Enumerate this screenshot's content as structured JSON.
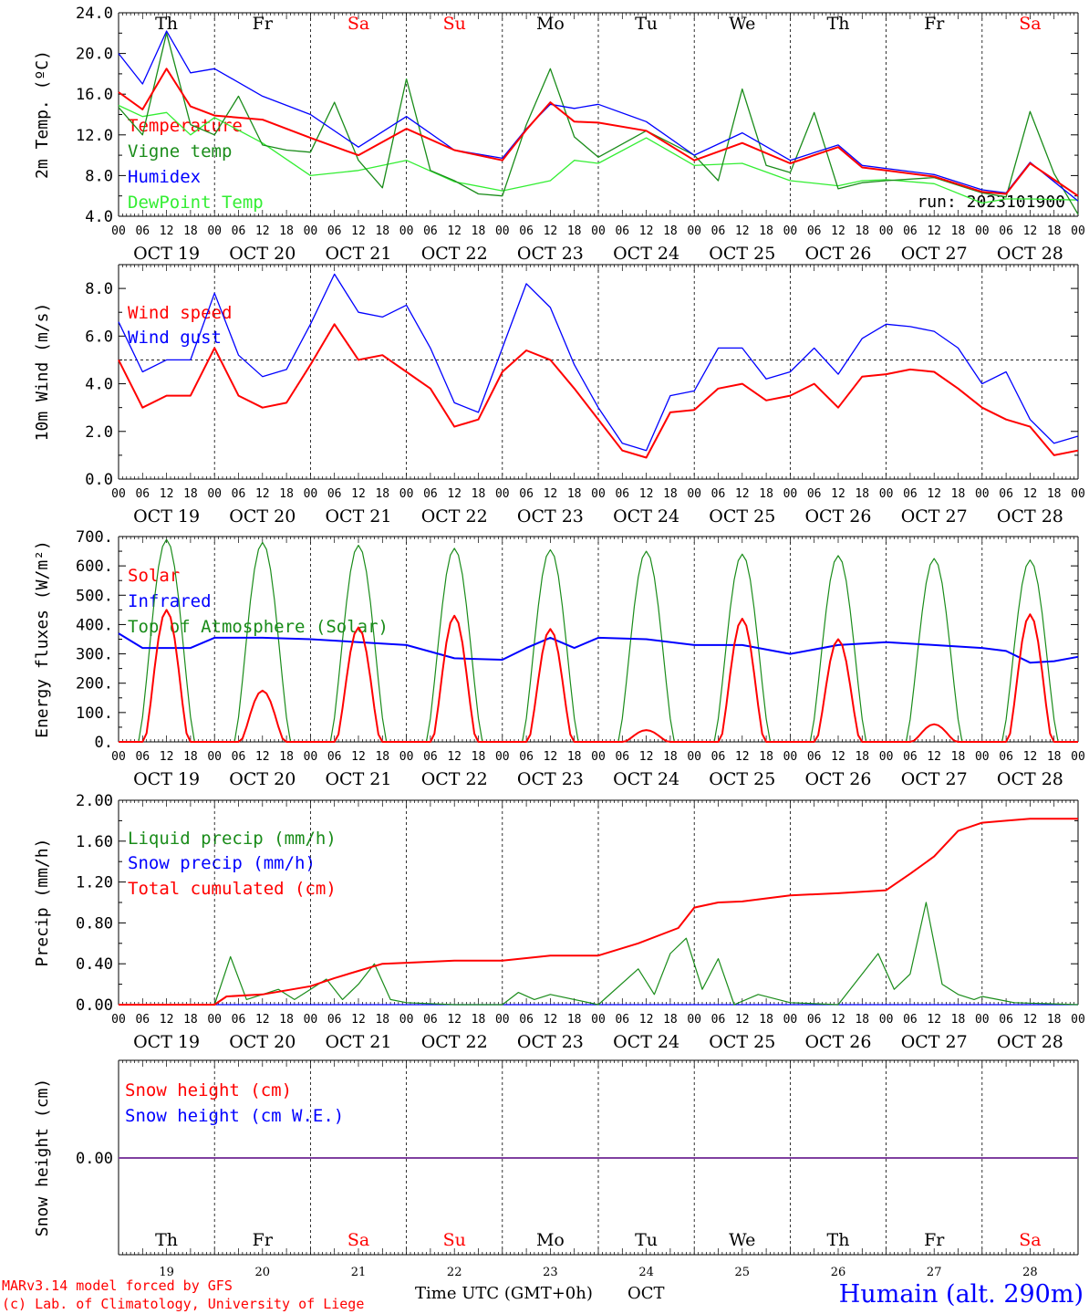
{
  "colors": {
    "red": "#ff0000",
    "green": "#1a8c1a",
    "lightgreen": "#33ee33",
    "blue": "#0000ff",
    "purple": "#8040a0",
    "black": "#000000"
  },
  "days": {
    "weekday": [
      "Th",
      "Fr",
      "Sa",
      "Su",
      "Mo",
      "Tu",
      "We",
      "Th",
      "Fr",
      "Sa"
    ],
    "weekend": [
      false,
      false,
      true,
      true,
      false,
      false,
      false,
      false,
      false,
      true
    ],
    "date": [
      "OCT 19",
      "OCT 20",
      "OCT 21",
      "OCT 22",
      "OCT 23",
      "OCT 24",
      "OCT 25",
      "OCT 26",
      "OCT 27",
      "OCT 28"
    ],
    "daynum": [
      "19",
      "20",
      "21",
      "22",
      "23",
      "24",
      "25",
      "26",
      "27",
      "28"
    ]
  },
  "hour_ticks": [
    "00",
    "06",
    "12",
    "18"
  ],
  "hour_end": "00",
  "run_label": "run: 2023101900",
  "footer": {
    "credit1": "MARv3.14 model forced by GFS",
    "credit2": "(c) Lab. of Climatology, University of Liege",
    "time_label": "Time UTC (GMT+0h)",
    "month": "OCT",
    "location": "Humain (alt. 290m)"
  },
  "chart_data": [
    {
      "type": "line",
      "ylabel": "2m Temp. (ºC)",
      "ylim": [
        4.0,
        24.0
      ],
      "yticks": [
        "24.0",
        "20.0",
        "16.0",
        "12.0",
        "8.0",
        "4.0"
      ],
      "legend_position": "left",
      "x_unit": "hours from 2023-10-19 00 UTC",
      "series": [
        {
          "name": "Temperature",
          "color": "#ff0000",
          "x": [
            0,
            6,
            12,
            18,
            24,
            36,
            48,
            60,
            72,
            84,
            96,
            102,
            108,
            114,
            120,
            132,
            144,
            156,
            168,
            180,
            186,
            192,
            204,
            216,
            222,
            228,
            240
          ],
          "values": [
            16.2,
            14.5,
            18.5,
            14.8,
            13.9,
            13.5,
            11.7,
            10.0,
            12.6,
            10.5,
            9.5,
            12.5,
            15.2,
            13.3,
            13.2,
            12.4,
            9.5,
            11.2,
            9.2,
            10.8,
            8.8,
            8.5,
            7.9,
            6.4,
            6.2,
            9.2,
            6.0
          ]
        },
        {
          "name": "Vigne temp",
          "color": "#1a8c1a",
          "x": [
            0,
            6,
            12,
            18,
            24,
            30,
            36,
            42,
            48,
            54,
            60,
            66,
            72,
            78,
            84,
            90,
            96,
            102,
            108,
            114,
            120,
            132,
            144,
            150,
            156,
            162,
            168,
            174,
            180,
            186,
            192,
            204,
            216,
            222,
            228,
            234,
            240
          ],
          "values": [
            14.7,
            12.0,
            22.0,
            13.0,
            12.0,
            15.8,
            11.0,
            10.5,
            10.3,
            15.2,
            9.5,
            6.8,
            17.5,
            8.5,
            7.5,
            6.2,
            6.0,
            13.0,
            18.5,
            11.8,
            9.8,
            12.4,
            10.0,
            7.5,
            16.5,
            9.0,
            8.3,
            14.2,
            6.7,
            7.3,
            7.5,
            7.8,
            6.3,
            5.9,
            14.3,
            8.2,
            4.2
          ]
        },
        {
          "name": "Humidex",
          "color": "#0000ff",
          "x": [
            0,
            6,
            12,
            18,
            24,
            36,
            48,
            60,
            72,
            84,
            96,
            102,
            108,
            114,
            120,
            132,
            144,
            156,
            168,
            180,
            186,
            192,
            204,
            216,
            222,
            228,
            240
          ],
          "values": [
            20.0,
            17.0,
            22.2,
            18.1,
            18.5,
            15.8,
            14.0,
            10.8,
            13.8,
            10.5,
            9.7,
            12.6,
            15.0,
            14.6,
            15.0,
            13.3,
            10.0,
            12.2,
            9.5,
            11.0,
            9.0,
            8.7,
            8.1,
            6.6,
            6.3,
            9.3,
            5.5
          ]
        },
        {
          "name": "DewPoint Temp",
          "color": "#33ee33",
          "x": [
            0,
            6,
            12,
            18,
            24,
            36,
            48,
            60,
            72,
            84,
            96,
            102,
            108,
            114,
            120,
            132,
            144,
            156,
            168,
            180,
            186,
            192,
            204,
            216,
            222,
            228,
            240
          ],
          "values": [
            14.9,
            13.8,
            14.2,
            12.0,
            13.7,
            11.2,
            8.0,
            8.5,
            9.5,
            7.4,
            6.5,
            7.0,
            7.5,
            9.5,
            9.2,
            11.7,
            9.0,
            9.2,
            7.5,
            7.0,
            7.5,
            7.6,
            7.2,
            5.3,
            5.7,
            5.7,
            5.6
          ]
        }
      ]
    },
    {
      "type": "line",
      "ylabel": "10m Wind (m/s)",
      "ylim": [
        0.0,
        9.0
      ],
      "yticks": [
        "8.0",
        "6.0",
        "4.0",
        "2.0",
        "0.0"
      ],
      "reference_line": 5.0,
      "series": [
        {
          "name": "Wind speed",
          "color": "#ff0000",
          "x": [
            0,
            6,
            12,
            18,
            24,
            30,
            36,
            42,
            48,
            54,
            60,
            66,
            72,
            78,
            84,
            90,
            96,
            102,
            108,
            114,
            120,
            126,
            132,
            138,
            144,
            150,
            156,
            162,
            168,
            174,
            180,
            186,
            192,
            198,
            204,
            210,
            216,
            222,
            228,
            234,
            240
          ],
          "values": [
            5.0,
            3.0,
            3.5,
            3.5,
            5.5,
            3.5,
            3.0,
            3.2,
            4.8,
            6.5,
            5.0,
            5.2,
            4.5,
            3.8,
            2.2,
            2.5,
            4.5,
            5.4,
            5.0,
            3.8,
            2.5,
            1.2,
            0.9,
            2.8,
            2.9,
            3.8,
            4.0,
            3.3,
            3.5,
            4.0,
            3.0,
            4.3,
            4.4,
            4.6,
            4.5,
            3.8,
            3.0,
            2.5,
            2.2,
            1.0,
            1.2
          ]
        },
        {
          "name": "Wind gust",
          "color": "#0000ff",
          "x": [
            0,
            6,
            12,
            18,
            24,
            30,
            36,
            42,
            48,
            54,
            60,
            66,
            72,
            78,
            84,
            90,
            96,
            102,
            108,
            114,
            120,
            126,
            132,
            138,
            144,
            150,
            156,
            162,
            168,
            174,
            180,
            186,
            192,
            198,
            204,
            210,
            216,
            222,
            228,
            234,
            240
          ],
          "values": [
            6.6,
            4.5,
            5.0,
            5.0,
            7.8,
            5.2,
            4.3,
            4.6,
            6.5,
            8.6,
            7.0,
            6.8,
            7.3,
            5.5,
            3.2,
            2.8,
            5.5,
            8.2,
            7.2,
            4.8,
            3.0,
            1.5,
            1.2,
            3.5,
            3.7,
            5.5,
            5.5,
            4.2,
            4.5,
            5.5,
            4.4,
            5.9,
            6.5,
            6.4,
            6.2,
            5.5,
            4.0,
            4.5,
            2.5,
            1.5,
            1.8
          ]
        }
      ]
    },
    {
      "type": "line",
      "ylabel": "Energy fluxes (W/m²)",
      "ylim": [
        0,
        700
      ],
      "yticks": [
        "700.",
        "600.",
        "500.",
        "400.",
        "300.",
        "200.",
        "100.",
        "0."
      ],
      "series": [
        {
          "name": "Solar",
          "color": "#ff0000",
          "day_peaks": [
            450,
            175,
            390,
            430,
            385,
            40,
            420,
            350,
            60,
            435
          ]
        },
        {
          "name": "Infrared",
          "color": "#0000ff",
          "x": [
            0,
            6,
            12,
            18,
            24,
            36,
            48,
            60,
            72,
            84,
            96,
            102,
            108,
            114,
            120,
            132,
            144,
            156,
            168,
            180,
            192,
            204,
            216,
            222,
            228,
            234,
            240
          ],
          "values": [
            370,
            320,
            320,
            320,
            355,
            355,
            350,
            340,
            330,
            285,
            280,
            320,
            355,
            320,
            355,
            350,
            330,
            330,
            300,
            330,
            340,
            330,
            320,
            310,
            270,
            275,
            290
          ]
        },
        {
          "name": "Top of Atmosphere (Solar)",
          "color": "#1a8c1a",
          "day_peaks": [
            690,
            680,
            670,
            660,
            655,
            650,
            640,
            635,
            625,
            620
          ]
        }
      ]
    },
    {
      "type": "line",
      "ylabel": "Precip (mm/h)",
      "ylim": [
        0.0,
        2.0
      ],
      "yticks": [
        "2.00",
        "1.60",
        "1.20",
        "0.80",
        "0.40",
        "0.00"
      ],
      "series": [
        {
          "name": "Liquid precip (mm/h)",
          "color": "#1a8c1a",
          "x": [
            0,
            24,
            28,
            32,
            40,
            44,
            48,
            52,
            56,
            60,
            64,
            68,
            72,
            84,
            96,
            100,
            104,
            108,
            120,
            130,
            134,
            138,
            142,
            146,
            150,
            154,
            160,
            168,
            180,
            190,
            194,
            198,
            202,
            206,
            210,
            214,
            216,
            220,
            224,
            240
          ],
          "values": [
            0.0,
            0.0,
            0.47,
            0.05,
            0.15,
            0.05,
            0.15,
            0.25,
            0.05,
            0.2,
            0.4,
            0.05,
            0.02,
            0.0,
            0.0,
            0.12,
            0.05,
            0.1,
            0.0,
            0.35,
            0.1,
            0.5,
            0.65,
            0.15,
            0.45,
            0.0,
            0.1,
            0.02,
            0.0,
            0.5,
            0.15,
            0.3,
            1.0,
            0.2,
            0.1,
            0.05,
            0.08,
            0.05,
            0.02,
            0.0
          ]
        },
        {
          "name": "Snow precip (mm/h)",
          "color": "#0000ff",
          "x": [
            0,
            240
          ],
          "values": [
            0.0,
            0.0
          ]
        },
        {
          "name": "Total cumulated (cm)",
          "color": "#ff0000",
          "x": [
            0,
            24,
            27,
            36,
            48,
            54,
            60,
            66,
            72,
            84,
            96,
            108,
            120,
            130,
            140,
            144,
            150,
            156,
            168,
            180,
            192,
            198,
            204,
            210,
            216,
            222,
            228,
            240
          ],
          "values": [
            0.0,
            0.0,
            0.08,
            0.1,
            0.18,
            0.26,
            0.33,
            0.4,
            0.41,
            0.43,
            0.43,
            0.48,
            0.48,
            0.6,
            0.75,
            0.95,
            1.0,
            1.01,
            1.07,
            1.09,
            1.12,
            1.28,
            1.45,
            1.7,
            1.78,
            1.8,
            1.82,
            1.82
          ]
        }
      ]
    },
    {
      "type": "line",
      "ylabel": "Snow height (cm)",
      "yticks": [
        "0.00"
      ],
      "series": [
        {
          "name": "Snow height (cm)",
          "color": "#ff0000"
        },
        {
          "name": "Snow height (cm W.E.)",
          "color": "#0000ff"
        }
      ]
    }
  ]
}
